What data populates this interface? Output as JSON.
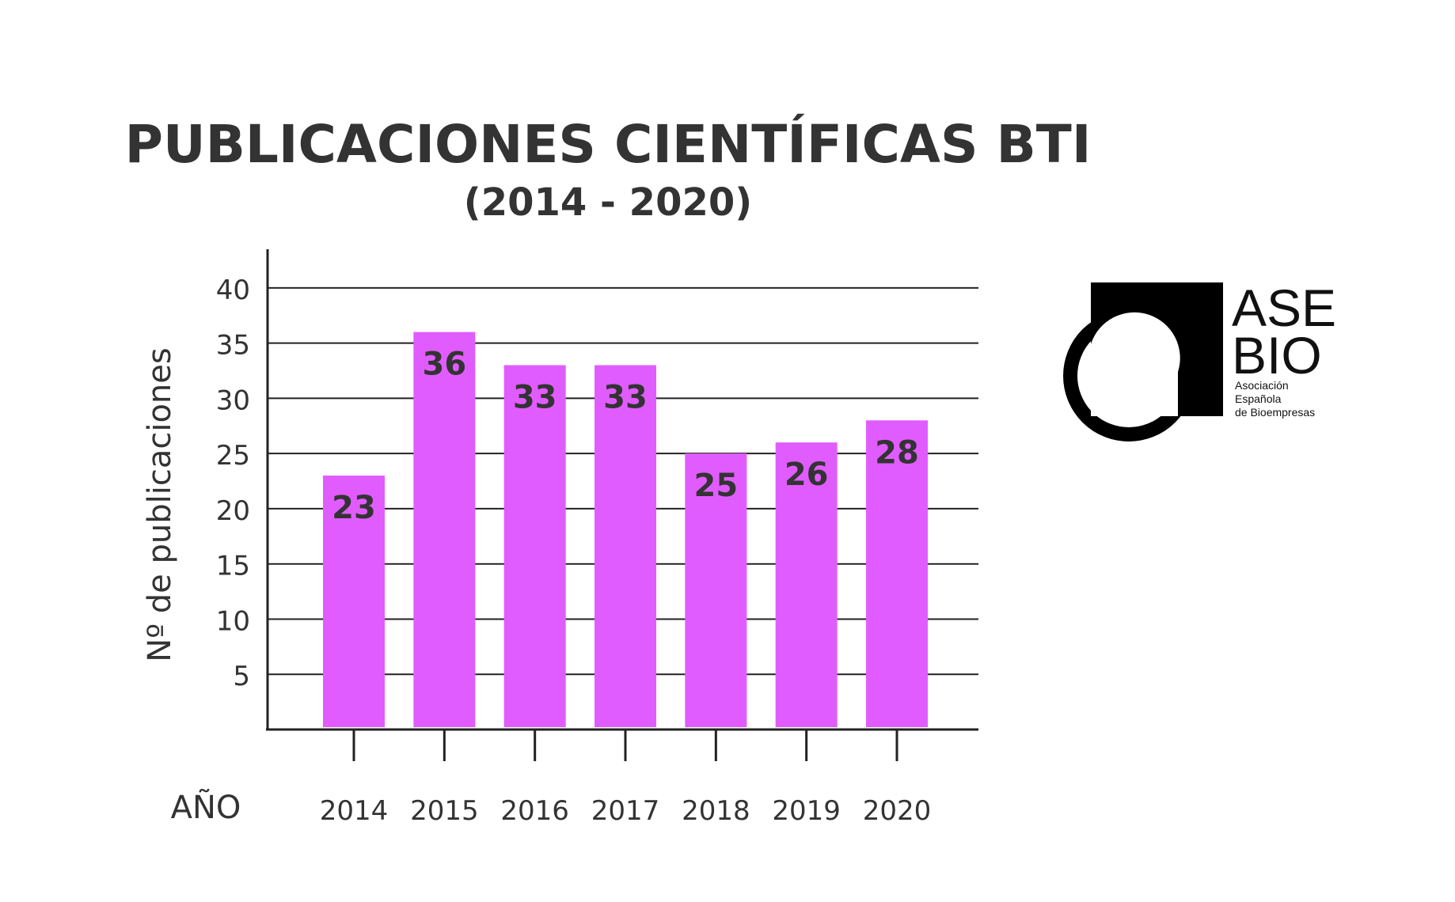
{
  "chart_data": {
    "type": "bar",
    "title": "PUBLICACIONES CIENTÍFICAS BTI",
    "subtitle": "(2014 - 2020)",
    "xlabel": "AÑO",
    "ylabel": "Nº de publicaciones",
    "categories": [
      "2014",
      "2015",
      "2016",
      "2017",
      "2018",
      "2019",
      "2020"
    ],
    "values": [
      23,
      36,
      33,
      33,
      25,
      26,
      28
    ],
    "data_labels": [
      "23",
      "36",
      "33",
      "33",
      "25",
      "26",
      "28"
    ],
    "y_ticks": [
      5,
      10,
      15,
      20,
      25,
      30,
      35,
      40
    ],
    "y_tick_labels": [
      "5",
      "10",
      "15",
      "20",
      "25",
      "30",
      "35",
      "40"
    ],
    "ylim": [
      0,
      43.5
    ],
    "grid": true,
    "bar_color": "#e15cff",
    "text_color": "#333333"
  },
  "logo": {
    "line1": "ASE",
    "line2": "BIO",
    "tagline1": "Asociación",
    "tagline2": "Española",
    "tagline3": "de Bioempresas"
  }
}
